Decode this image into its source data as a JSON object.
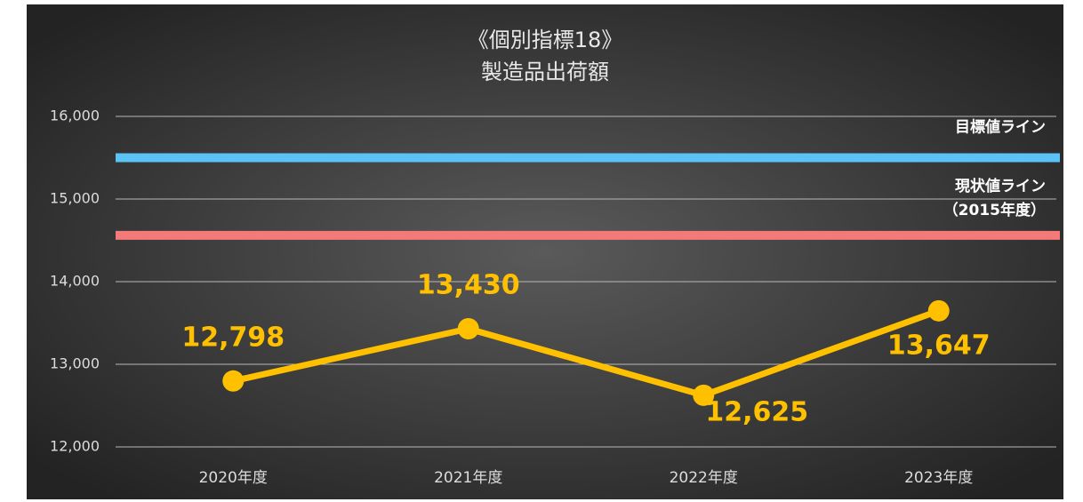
{
  "chart_data": {
    "type": "line",
    "title": "《個別指標18》",
    "subtitle": "製造品出荷額",
    "categories": [
      "2020年度",
      "2021年度",
      "2022年度",
      "2023年度"
    ],
    "series": [
      {
        "name": "製造品出荷額",
        "color": "#ffc000",
        "values": [
          12798,
          13430,
          12625,
          13647
        ],
        "value_labels": [
          "12,798",
          "13,430",
          "12,625",
          "13,647"
        ]
      }
    ],
    "reference_lines": [
      {
        "name": "目標値ライン",
        "value": 15500,
        "color": "#5bc2f5"
      },
      {
        "name": "現状値ライン",
        "subtitle": "（2015年度）",
        "value": 14560,
        "color": "#f47a7a"
      }
    ],
    "ylim": [
      12000,
      16000
    ],
    "yticks": [
      {
        "value": 12000,
        "label": "12,000"
      },
      {
        "value": 13000,
        "label": "13,000"
      },
      {
        "value": 14000,
        "label": "14,000"
      },
      {
        "value": 15000,
        "label": "15,000"
      },
      {
        "value": 16000,
        "label": "16,000"
      }
    ],
    "grid": true
  }
}
